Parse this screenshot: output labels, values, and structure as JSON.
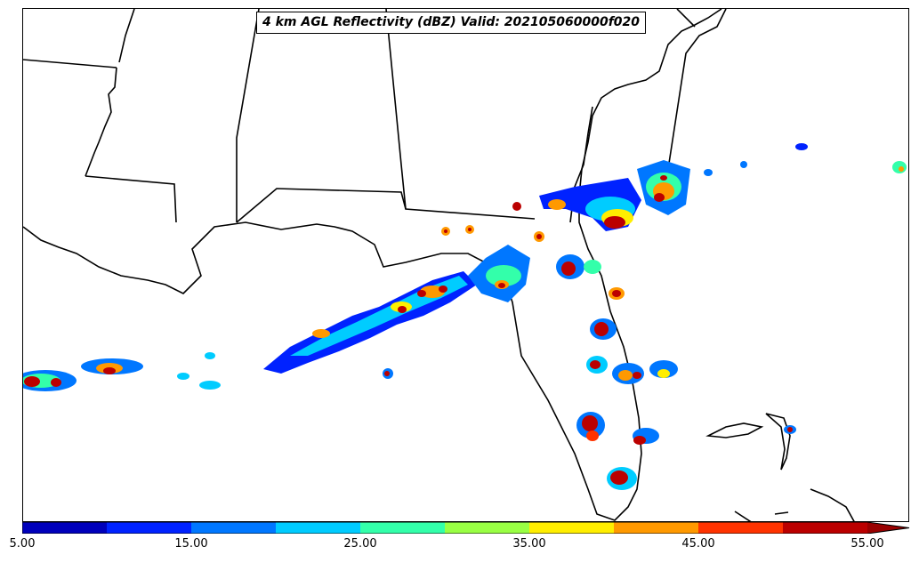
{
  "title": "4 km AGL Reflectivity (dBZ) Valid: 202105060000f020",
  "colorbar": {
    "tick_labels": [
      "5.00",
      "15.00",
      "25.00",
      "35.00",
      "45.00",
      "55.00"
    ],
    "min": 5,
    "max": 55,
    "step": 5,
    "extend": "max",
    "colors": [
      "#0000bb",
      "#0022ff",
      "#0077ff",
      "#00ccff",
      "#33ffaa",
      "#99ff44",
      "#ffee00",
      "#ff9900",
      "#ff3300",
      "#bb0000"
    ],
    "extend_color": "#990000"
  },
  "map": {
    "field": "reflectivity",
    "region": "Southeastern US / Gulf of Mexico",
    "coastline_color": "#000000"
  }
}
